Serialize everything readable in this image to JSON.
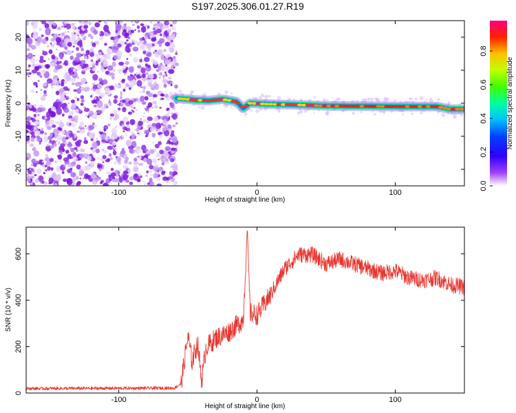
{
  "title": "S197.2025.306.01.27.R19",
  "colors": {
    "snr_line": "#e8352e",
    "axis": "#000000",
    "noise_purple": "#8a2be2"
  },
  "chart_data": [
    {
      "name": "spectrogram",
      "type": "heatmap",
      "xlabel": "Height of straight line (km)",
      "ylabel": "Frequency (Hz)",
      "xlim": [
        -167,
        150
      ],
      "ylim": [
        -25,
        25
      ],
      "xticks": [
        -100,
        0,
        100
      ],
      "xtick_labels": [
        "-100",
        "0",
        "100"
      ],
      "yticks": [
        -20,
        -10,
        0,
        10,
        20
      ],
      "ytick_labels": [
        "-20",
        "-10",
        "0",
        "10",
        "20"
      ],
      "noise_region_x": [
        -167,
        -58
      ],
      "signal_track": [
        {
          "x": -58,
          "f": 1.5
        },
        {
          "x": -45,
          "f": 1.0
        },
        {
          "x": -35,
          "f": 0.8
        },
        {
          "x": -25,
          "f": 1.2
        },
        {
          "x": -15,
          "f": 0.5
        },
        {
          "x": -10,
          "f": -1.5
        },
        {
          "x": -5,
          "f": 0.0
        },
        {
          "x": 10,
          "f": -0.3
        },
        {
          "x": 30,
          "f": -0.5
        },
        {
          "x": 50,
          "f": -0.8
        },
        {
          "x": 80,
          "f": -0.9
        },
        {
          "x": 100,
          "f": -1.0
        },
        {
          "x": 130,
          "f": -1.0
        },
        {
          "x": 140,
          "f": -1.8
        },
        {
          "x": 150,
          "f": -1.8
        }
      ],
      "colorbar": {
        "label": "Normalized spectral amplitude",
        "range": [
          0.0,
          0.98
        ],
        "ticks": [
          0.0,
          0.2,
          0.4,
          0.6,
          0.8
        ],
        "tick_labels": [
          "0.0",
          "0.2",
          "0.4",
          "0.6",
          "0.8"
        ]
      }
    },
    {
      "name": "snr",
      "type": "line",
      "xlabel": "Height of straight line (km)",
      "ylabel": "SNR (10 * v/v)",
      "xlim": [
        -167,
        150
      ],
      "ylim": [
        0,
        715
      ],
      "xticks": [
        -100,
        0,
        100
      ],
      "xtick_labels": [
        "-100",
        "0",
        "100"
      ],
      "yticks": [
        0,
        200,
        400,
        600
      ],
      "ytick_labels": [
        "0",
        "200",
        "400",
        "600"
      ],
      "envelope": [
        {
          "x": -167,
          "y": 20
        },
        {
          "x": -60,
          "y": 22
        },
        {
          "x": -55,
          "y": 40
        },
        {
          "x": -50,
          "y": 250
        },
        {
          "x": -47,
          "y": 140
        },
        {
          "x": -43,
          "y": 220
        },
        {
          "x": -40,
          "y": 60
        },
        {
          "x": -37,
          "y": 200
        },
        {
          "x": -30,
          "y": 240
        },
        {
          "x": -20,
          "y": 270
        },
        {
          "x": -10,
          "y": 320
        },
        {
          "x": -7,
          "y": 715
        },
        {
          "x": -5,
          "y": 350
        },
        {
          "x": 0,
          "y": 340
        },
        {
          "x": 10,
          "y": 430
        },
        {
          "x": 20,
          "y": 540
        },
        {
          "x": 30,
          "y": 600
        },
        {
          "x": 40,
          "y": 600
        },
        {
          "x": 50,
          "y": 560
        },
        {
          "x": 60,
          "y": 580
        },
        {
          "x": 70,
          "y": 560
        },
        {
          "x": 80,
          "y": 540
        },
        {
          "x": 90,
          "y": 520
        },
        {
          "x": 100,
          "y": 530
        },
        {
          "x": 110,
          "y": 500
        },
        {
          "x": 120,
          "y": 490
        },
        {
          "x": 130,
          "y": 500
        },
        {
          "x": 140,
          "y": 470
        },
        {
          "x": 150,
          "y": 460
        }
      ]
    }
  ]
}
